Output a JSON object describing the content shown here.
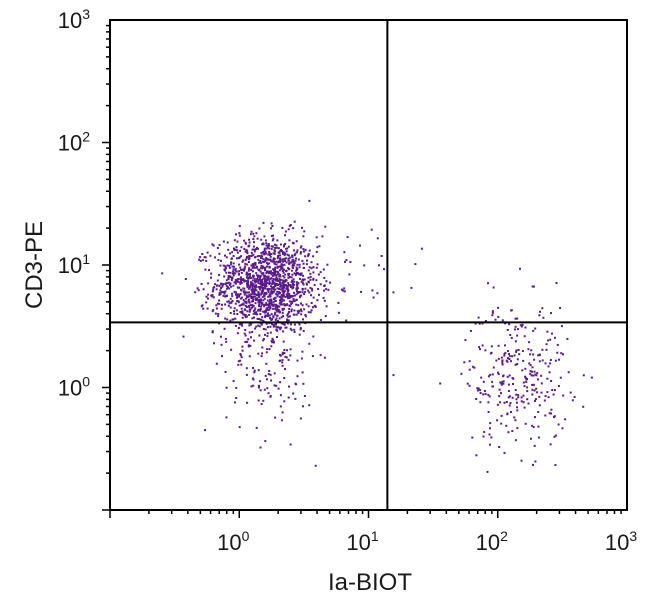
{
  "chart_data": {
    "type": "scatter",
    "title": "",
    "xlabel": "Ia-BIOT",
    "ylabel": "CD3-PE",
    "x_scale": "log",
    "y_scale": "log",
    "xlim": [
      0.1,
      1000
    ],
    "ylim": [
      0.1,
      1000
    ],
    "x_ticks": [
      {
        "base": "10",
        "exp": "0",
        "value": 1
      },
      {
        "base": "10",
        "exp": "1",
        "value": 10
      },
      {
        "base": "10",
        "exp": "2",
        "value": 100
      },
      {
        "base": "10",
        "exp": "3",
        "value": 1000
      }
    ],
    "y_ticks": [
      {
        "base": "10",
        "exp": "0",
        "value": 1
      },
      {
        "base": "10",
        "exp": "1",
        "value": 10
      },
      {
        "base": "10",
        "exp": "2",
        "value": 100
      },
      {
        "base": "10",
        "exp": "3",
        "value": 1000
      }
    ],
    "quadrant_gate": {
      "x": 14,
      "y": 3.4
    },
    "point_color": "#5a1a8a",
    "line_color": "#000000",
    "populations": [
      {
        "center": [
          1.6,
          7.0
        ],
        "spread_log": [
          0.2,
          0.2
        ],
        "count": 1400
      },
      {
        "center": [
          1.7,
          1.5
        ],
        "spread_log": [
          0.17,
          0.28
        ],
        "count": 130
      },
      {
        "center": [
          140,
          1.3
        ],
        "spread_log": [
          0.2,
          0.3
        ],
        "count": 300
      },
      {
        "center": [
          4.0,
          8.0
        ],
        "spread_log": [
          0.45,
          0.3
        ],
        "count": 60
      }
    ],
    "grid": false,
    "legend": "none"
  }
}
